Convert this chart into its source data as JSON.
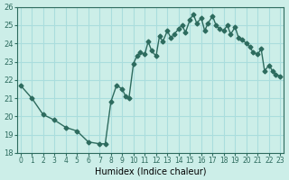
{
  "xlabel": "Humidex (Indice chaleur)",
  "ylabel": "",
  "bg_color": "#cceee8",
  "grid_color": "#aadddd",
  "line_color": "#2d6b5e",
  "marker_color": "#2d6b5e",
  "ylim": [
    18,
    26
  ],
  "xlim": [
    0,
    23
  ],
  "yticks": [
    18,
    19,
    20,
    21,
    22,
    23,
    24,
    25,
    26
  ],
  "xticks": [
    0,
    1,
    2,
    3,
    4,
    5,
    6,
    7,
    8,
    9,
    10,
    11,
    12,
    13,
    14,
    15,
    16,
    17,
    18,
    19,
    20,
    21,
    22,
    23
  ],
  "x": [
    0,
    1,
    2,
    3,
    4,
    5,
    6,
    7,
    7.5,
    8,
    8.5,
    9,
    9.3,
    9.6,
    10,
    10.3,
    10.6,
    11,
    11.3,
    11.6,
    12,
    12.3,
    12.6,
    13,
    13.3,
    13.6,
    14,
    14.3,
    14.6,
    15,
    15.3,
    15.6,
    16,
    16.3,
    16.6,
    17,
    17.3,
    17.6,
    18,
    18.3,
    18.6,
    19,
    19.3,
    19.6,
    20,
    20.3,
    20.6,
    21,
    21.3,
    21.6,
    22,
    22.3,
    22.6,
    23
  ],
  "y": [
    21.7,
    21.0,
    20.1,
    19.8,
    19.4,
    19.2,
    18.6,
    18.5,
    18.5,
    20.8,
    21.7,
    21.5,
    21.1,
    21.0,
    22.9,
    23.3,
    23.5,
    23.4,
    24.1,
    23.6,
    23.3,
    24.4,
    24.1,
    24.7,
    24.3,
    24.5,
    24.8,
    25.0,
    24.6,
    25.3,
    25.6,
    25.1,
    25.4,
    24.7,
    25.1,
    25.5,
    25.0,
    24.8,
    24.7,
    25.0,
    24.5,
    24.9,
    24.3,
    24.2,
    24.0,
    23.8,
    23.5,
    23.4,
    23.7,
    22.5,
    22.8,
    22.5,
    22.3,
    22.2
  ],
  "marker_indices": [
    0,
    1,
    2,
    3,
    4,
    5,
    6,
    7,
    9,
    10,
    11,
    12,
    13,
    14,
    15,
    16,
    17,
    18,
    19,
    20,
    21,
    22,
    23,
    24,
    25,
    26,
    27,
    28,
    29,
    30,
    31,
    32,
    33,
    34,
    35,
    36,
    37,
    38,
    39,
    40,
    41,
    42,
    43,
    44,
    45,
    46,
    47,
    48,
    49,
    50,
    51,
    52,
    53
  ]
}
